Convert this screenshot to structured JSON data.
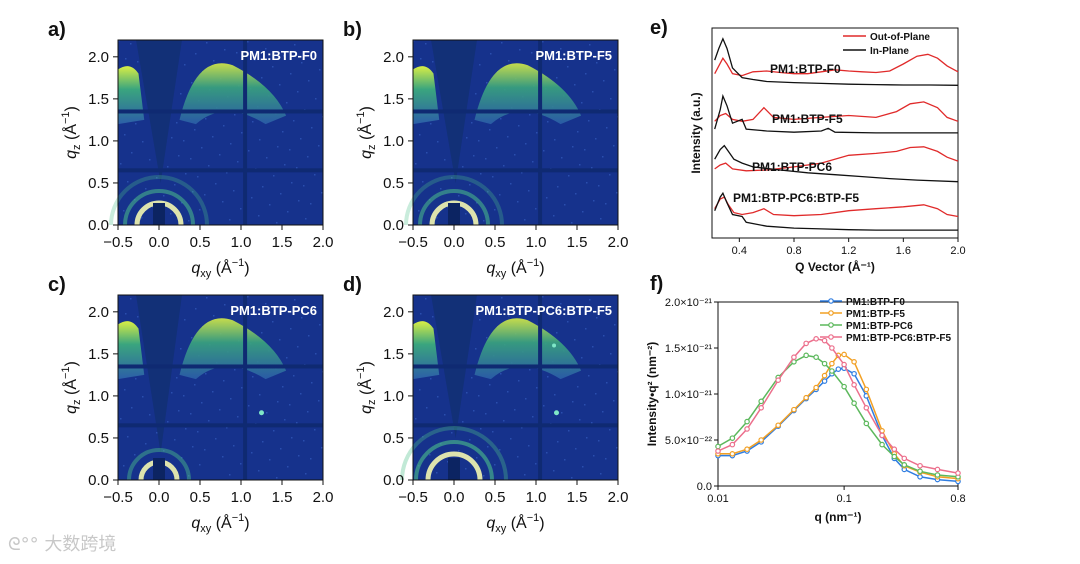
{
  "watermark": "大数跨境",
  "panels": {
    "a": {
      "letter": "a)",
      "label": "PM1:BTP-F0"
    },
    "b": {
      "letter": "b)",
      "label": "PM1:BTP-F5"
    },
    "c": {
      "letter": "c)",
      "label": "PM1:BTP-PC6"
    },
    "d": {
      "letter": "d)",
      "label": "PM1:BTP-PC6:BTP-F5"
    }
  },
  "gi_axes": {
    "xlabel_main": "q",
    "xlabel_sub": "xy",
    "xlabel_unit": "(Å",
    "xlabel_exp": "−1",
    "xlabel_close": ")",
    "ylabel_main": "q",
    "ylabel_sub": "z",
    "ylabel_unit": "(Å",
    "ylabel_exp": "−1",
    "ylabel_close": ")",
    "xticks": [
      "−0.5",
      "0.0",
      "0.5",
      "1.0",
      "1.5",
      "2.0"
    ],
    "yticks": [
      "0.0",
      "0.5",
      "1.0",
      "1.5",
      "2.0"
    ]
  },
  "colors": {
    "map_bg": "#16328c",
    "out_of_plane": "#e02a2a",
    "in_plane": "#111111",
    "f0": "#2f7de1",
    "f5": "#f2a024",
    "pc6": "#5cb85c",
    "pc6f5": "#ec6f8c"
  },
  "chart_data": [
    {
      "type": "line",
      "panel": "e)",
      "xlabel": "Q Vector (Å⁻¹)",
      "ylabel": "Intensity (a.u.)",
      "xlim": [
        0.2,
        2.0
      ],
      "xticks": [
        "0.4",
        "0.8",
        "1.2",
        "1.6",
        "2.0"
      ],
      "legend": [
        "Out-of-Plane",
        "In-Plane"
      ],
      "curve_labels": [
        "PM1:BTP-F0",
        "PM1:BTP-F5",
        "PM1:BTP-PC6",
        "PM1:BTP-PC6:BTP-F5"
      ],
      "series": [
        {
          "name": "PM1:BTP-F0",
          "offset": 3,
          "out_of_plane": [
            [
              0.22,
              0.55
            ],
            [
              0.25,
              0.75
            ],
            [
              0.28,
              0.95
            ],
            [
              0.31,
              0.8
            ],
            [
              0.35,
              0.55
            ],
            [
              0.42,
              0.5
            ],
            [
              0.5,
              0.6
            ],
            [
              0.6,
              0.62
            ],
            [
              0.7,
              0.58
            ],
            [
              0.8,
              0.55
            ],
            [
              0.9,
              0.55
            ],
            [
              1.0,
              0.6
            ],
            [
              1.1,
              0.65
            ],
            [
              1.2,
              0.62
            ],
            [
              1.3,
              0.6
            ],
            [
              1.4,
              0.58
            ],
            [
              1.5,
              0.62
            ],
            [
              1.6,
              0.8
            ],
            [
              1.7,
              1.0
            ],
            [
              1.78,
              1.05
            ],
            [
              1.85,
              0.95
            ],
            [
              1.92,
              0.75
            ],
            [
              2.0,
              0.6
            ]
          ],
          "in_plane": [
            [
              0.22,
              0.9
            ],
            [
              0.25,
              1.2
            ],
            [
              0.28,
              1.45
            ],
            [
              0.31,
              1.2
            ],
            [
              0.35,
              0.7
            ],
            [
              0.42,
              0.45
            ],
            [
              0.5,
              0.4
            ],
            [
              0.6,
              0.35
            ],
            [
              0.8,
              0.32
            ],
            [
              1.0,
              0.3
            ],
            [
              1.2,
              0.28
            ],
            [
              1.4,
              0.27
            ],
            [
              1.6,
              0.26
            ],
            [
              1.8,
              0.26
            ],
            [
              2.0,
              0.25
            ]
          ]
        },
        {
          "name": "PM1:BTP-F5",
          "offset": 2,
          "out_of_plane": [
            [
              0.22,
              0.5
            ],
            [
              0.26,
              0.65
            ],
            [
              0.3,
              0.7
            ],
            [
              0.35,
              0.55
            ],
            [
              0.42,
              0.5
            ],
            [
              0.5,
              0.55
            ],
            [
              0.58,
              0.85
            ],
            [
              0.65,
              0.6
            ],
            [
              0.8,
              0.55
            ],
            [
              1.0,
              0.6
            ],
            [
              1.2,
              0.65
            ],
            [
              1.4,
              0.6
            ],
            [
              1.55,
              0.75
            ],
            [
              1.65,
              0.95
            ],
            [
              1.75,
              1.0
            ],
            [
              1.85,
              0.85
            ],
            [
              1.92,
              0.6
            ],
            [
              2.0,
              0.5
            ]
          ],
          "in_plane": [
            [
              0.22,
              0.3
            ],
            [
              0.26,
              0.8
            ],
            [
              0.28,
              1.15
            ],
            [
              0.31,
              0.9
            ],
            [
              0.35,
              0.45
            ],
            [
              0.42,
              0.55
            ],
            [
              0.45,
              0.3
            ],
            [
              0.6,
              0.25
            ],
            [
              0.8,
              0.22
            ],
            [
              1.0,
              0.25
            ],
            [
              1.05,
              0.32
            ],
            [
              1.1,
              0.22
            ],
            [
              1.4,
              0.2
            ],
            [
              1.7,
              0.2
            ],
            [
              2.0,
              0.2
            ]
          ]
        },
        {
          "name": "PM1:BTP-PC6",
          "offset": 1,
          "out_of_plane": [
            [
              0.22,
              0.45
            ],
            [
              0.26,
              0.55
            ],
            [
              0.3,
              0.6
            ],
            [
              0.35,
              0.45
            ],
            [
              0.45,
              0.4
            ],
            [
              0.6,
              0.42
            ],
            [
              0.8,
              0.5
            ],
            [
              1.0,
              0.6
            ],
            [
              1.2,
              0.8
            ],
            [
              1.4,
              0.85
            ],
            [
              1.55,
              0.9
            ],
            [
              1.65,
              1.0
            ],
            [
              1.75,
              1.02
            ],
            [
              1.85,
              0.9
            ],
            [
              1.92,
              0.75
            ],
            [
              2.0,
              0.65
            ]
          ],
          "in_plane": [
            [
              0.22,
              0.7
            ],
            [
              0.26,
              0.95
            ],
            [
              0.29,
              1.05
            ],
            [
              0.32,
              0.9
            ],
            [
              0.36,
              0.7
            ],
            [
              0.42,
              0.6
            ],
            [
              0.5,
              0.5
            ],
            [
              0.7,
              0.42
            ],
            [
              0.9,
              0.35
            ],
            [
              1.1,
              0.3
            ],
            [
              1.3,
              0.25
            ],
            [
              1.5,
              0.2
            ],
            [
              1.7,
              0.16
            ],
            [
              2.0,
              0.12
            ]
          ]
        },
        {
          "name": "PM1:BTP-PC6:BTP-F5",
          "offset": 0,
          "out_of_plane": [
            [
              0.22,
              0.6
            ],
            [
              0.26,
              0.85
            ],
            [
              0.29,
              0.9
            ],
            [
              0.32,
              0.7
            ],
            [
              0.36,
              0.5
            ],
            [
              0.42,
              0.45
            ],
            [
              0.5,
              0.5
            ],
            [
              0.58,
              0.6
            ],
            [
              0.65,
              0.45
            ],
            [
              0.8,
              0.42
            ],
            [
              1.0,
              0.45
            ],
            [
              1.2,
              0.55
            ],
            [
              1.4,
              0.6
            ],
            [
              1.6,
              0.65
            ],
            [
              1.75,
              0.7
            ],
            [
              1.85,
              0.6
            ],
            [
              1.92,
              0.45
            ],
            [
              2.0,
              0.4
            ]
          ],
          "in_plane": [
            [
              0.22,
              0.55
            ],
            [
              0.26,
              0.9
            ],
            [
              0.28,
              1.0
            ],
            [
              0.31,
              0.75
            ],
            [
              0.35,
              0.45
            ],
            [
              0.42,
              0.4
            ],
            [
              0.45,
              0.25
            ],
            [
              0.6,
              0.15
            ],
            [
              0.8,
              0.1
            ],
            [
              1.0,
              0.08
            ],
            [
              1.2,
              0.06
            ],
            [
              1.4,
              0.05
            ],
            [
              1.7,
              0.05
            ],
            [
              2.0,
              0.05
            ]
          ]
        }
      ]
    },
    {
      "type": "line",
      "panel": "f)",
      "xlabel": "q (nm⁻¹)",
      "ylabel": "Intensity•q² (nm⁻²)",
      "xscale": "log",
      "xlim": [
        0.01,
        0.8
      ],
      "ylim": [
        0,
        2e-21
      ],
      "xticks": [
        "0.01",
        "0.1",
        "0.8"
      ],
      "yticks": [
        "0.0",
        "5.0×10⁻²²",
        "1.0×10⁻²¹",
        "1.5×10⁻²¹",
        "2.0×10⁻²¹"
      ],
      "legend_position": "top-right",
      "series": [
        {
          "name": "PM1:BTP-F0",
          "color": "f0",
          "points": [
            [
              0.01,
              0.33
            ],
            [
              0.013,
              0.33
            ],
            [
              0.017,
              0.38
            ],
            [
              0.022,
              0.48
            ],
            [
              0.03,
              0.65
            ],
            [
              0.04,
              0.82
            ],
            [
              0.05,
              0.95
            ],
            [
              0.06,
              1.05
            ],
            [
              0.07,
              1.14
            ],
            [
              0.08,
              1.22
            ],
            [
              0.09,
              1.27
            ],
            [
              0.1,
              1.28
            ],
            [
              0.12,
              1.22
            ],
            [
              0.15,
              0.98
            ],
            [
              0.2,
              0.55
            ],
            [
              0.25,
              0.3
            ],
            [
              0.3,
              0.18
            ],
            [
              0.4,
              0.1
            ],
            [
              0.55,
              0.07
            ],
            [
              0.8,
              0.05
            ]
          ]
        },
        {
          "name": "PM1:BTP-F5",
          "color": "f5",
          "points": [
            [
              0.01,
              0.35
            ],
            [
              0.013,
              0.35
            ],
            [
              0.017,
              0.4
            ],
            [
              0.022,
              0.5
            ],
            [
              0.03,
              0.66
            ],
            [
              0.04,
              0.83
            ],
            [
              0.05,
              0.96
            ],
            [
              0.06,
              1.07
            ],
            [
              0.07,
              1.2
            ],
            [
              0.08,
              1.33
            ],
            [
              0.09,
              1.42
            ],
            [
              0.1,
              1.43
            ],
            [
              0.12,
              1.35
            ],
            [
              0.15,
              1.05
            ],
            [
              0.2,
              0.6
            ],
            [
              0.25,
              0.35
            ],
            [
              0.3,
              0.22
            ],
            [
              0.4,
              0.15
            ],
            [
              0.55,
              0.1
            ],
            [
              0.8,
              0.08
            ]
          ]
        },
        {
          "name": "PM1:BTP-PC6",
          "color": "pc6",
          "points": [
            [
              0.01,
              0.43
            ],
            [
              0.013,
              0.52
            ],
            [
              0.017,
              0.7
            ],
            [
              0.022,
              0.92
            ],
            [
              0.03,
              1.18
            ],
            [
              0.04,
              1.35
            ],
            [
              0.05,
              1.42
            ],
            [
              0.06,
              1.4
            ],
            [
              0.07,
              1.33
            ],
            [
              0.08,
              1.25
            ],
            [
              0.1,
              1.08
            ],
            [
              0.12,
              0.9
            ],
            [
              0.15,
              0.68
            ],
            [
              0.2,
              0.45
            ],
            [
              0.25,
              0.32
            ],
            [
              0.3,
              0.23
            ],
            [
              0.4,
              0.16
            ],
            [
              0.55,
              0.12
            ],
            [
              0.8,
              0.1
            ]
          ]
        },
        {
          "name": "PM1:BTP-PC6:BTP-F5",
          "color": "pc6f5",
          "points": [
            [
              0.01,
              0.38
            ],
            [
              0.013,
              0.45
            ],
            [
              0.017,
              0.62
            ],
            [
              0.022,
              0.85
            ],
            [
              0.03,
              1.15
            ],
            [
              0.04,
              1.4
            ],
            [
              0.05,
              1.55
            ],
            [
              0.06,
              1.6
            ],
            [
              0.07,
              1.58
            ],
            [
              0.08,
              1.5
            ],
            [
              0.1,
              1.32
            ],
            [
              0.12,
              1.1
            ],
            [
              0.15,
              0.85
            ],
            [
              0.2,
              0.55
            ],
            [
              0.25,
              0.4
            ],
            [
              0.3,
              0.3
            ],
            [
              0.4,
              0.22
            ],
            [
              0.55,
              0.18
            ],
            [
              0.8,
              0.14
            ]
          ]
        }
      ]
    }
  ]
}
